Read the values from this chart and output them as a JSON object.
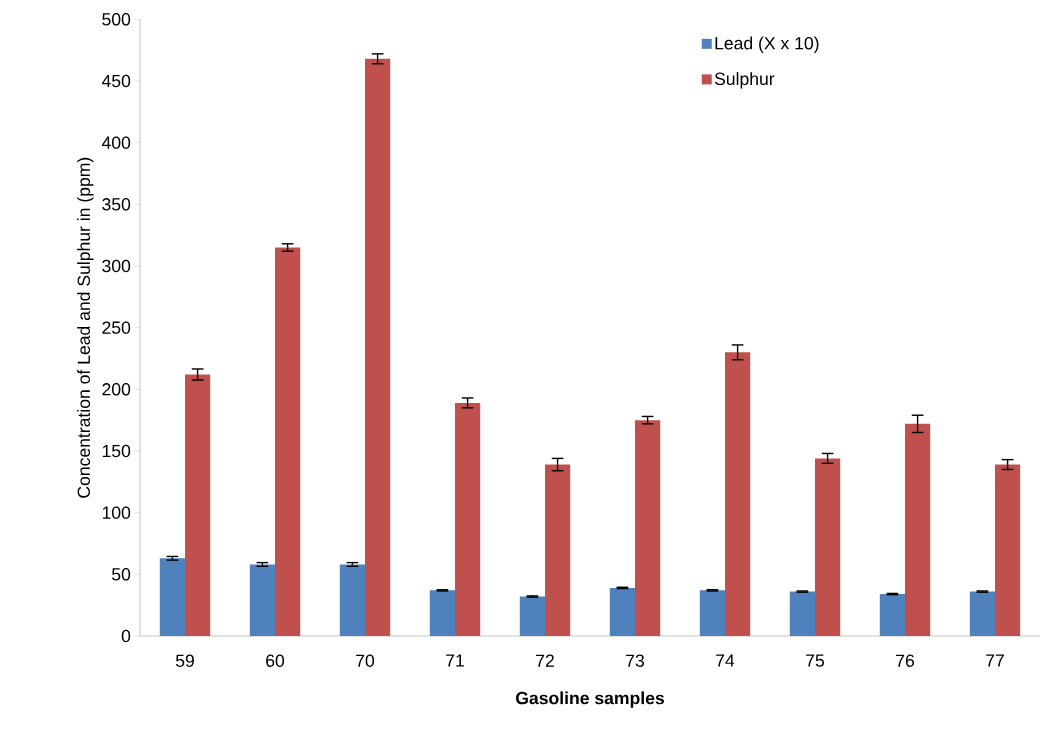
{
  "chart_data": {
    "type": "bar",
    "xlabel": "Gasoline samples",
    "ylabel": "Concentration of Lead and Sulphur in (ppm)",
    "categories": [
      "59",
      "60",
      "70",
      "71",
      "72",
      "73",
      "74",
      "75",
      "76",
      "77"
    ],
    "series": [
      {
        "name": "Lead (X x 10)",
        "color": "#4f81bd",
        "values": [
          63,
          58,
          58,
          37,
          32,
          39,
          37,
          36,
          34,
          36
        ],
        "errors": [
          1.5,
          1.5,
          1.5,
          0.5,
          0.5,
          0.5,
          0.5,
          0.5,
          0.5,
          0.5
        ]
      },
      {
        "name": "Sulphur",
        "color": "#c0504d",
        "values": [
          212,
          315,
          468,
          189,
          139,
          175,
          230,
          144,
          172,
          139
        ],
        "errors": [
          4.5,
          3,
          4,
          4,
          5,
          3,
          6,
          4,
          7,
          4
        ]
      }
    ],
    "ylim": [
      0,
      500
    ],
    "yticks": [
      0,
      50,
      100,
      150,
      200,
      250,
      300,
      350,
      400,
      450,
      500
    ],
    "grid": false,
    "legend": "top right"
  }
}
